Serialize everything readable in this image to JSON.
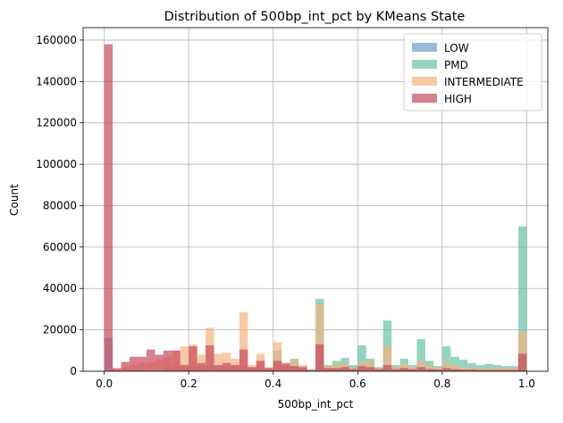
{
  "chart_data": {
    "type": "bar",
    "title": "Distribution of 500bp_int_pct by KMeans State",
    "xlabel": "500bp_int_pct",
    "ylabel": "Count",
    "xlim": [
      -0.05,
      1.05
    ],
    "ylim": [
      0,
      166000
    ],
    "xticks": [
      0.0,
      0.2,
      0.4,
      0.6,
      0.8,
      1.0
    ],
    "xtick_labels": [
      "0.0",
      "0.2",
      "0.4",
      "0.6",
      "0.8",
      "1.0"
    ],
    "yticks": [
      0,
      20000,
      40000,
      60000,
      80000,
      100000,
      120000,
      140000,
      160000
    ],
    "ytick_labels": [
      "0",
      "20000",
      "40000",
      "60000",
      "80000",
      "100000",
      "120000",
      "140000",
      "160000"
    ],
    "grid": true,
    "legend_position": "top-right",
    "bin_width": 0.02,
    "bin_starts": [
      0.0,
      0.02,
      0.04,
      0.06,
      0.08,
      0.1,
      0.12,
      0.14,
      0.16,
      0.18,
      0.2,
      0.22,
      0.24,
      0.26,
      0.28,
      0.3,
      0.32,
      0.34,
      0.36,
      0.38,
      0.4,
      0.42,
      0.44,
      0.46,
      0.48,
      0.5,
      0.52,
      0.54,
      0.56,
      0.58,
      0.6,
      0.62,
      0.64,
      0.66,
      0.68,
      0.7,
      0.72,
      0.74,
      0.76,
      0.78,
      0.8,
      0.82,
      0.84,
      0.86,
      0.88,
      0.9,
      0.92,
      0.94,
      0.96,
      0.98
    ],
    "series": [
      {
        "name": "LOW",
        "color": "#6e9ccc",
        "values": [
          16000,
          500,
          300,
          200,
          200,
          300,
          300,
          1500,
          1500,
          1500,
          1000,
          1500,
          1500,
          1000,
          1000,
          1000,
          1200,
          1000,
          1000,
          800,
          1500,
          1000,
          800,
          800,
          500,
          6000,
          1500,
          1500,
          1500,
          1500,
          1500,
          1500,
          1500,
          1500,
          1500,
          1500,
          1200,
          1500,
          1200,
          1000,
          1200,
          1000,
          900,
          800,
          800,
          800,
          800,
          700,
          700,
          7000
        ]
      },
      {
        "name": "PMD",
        "color": "#66c2a5",
        "values": [
          1000,
          300,
          200,
          200,
          200,
          300,
          300,
          2000,
          2000,
          2000,
          2500,
          2500,
          2500,
          2000,
          2000,
          2000,
          2500,
          2000,
          2000,
          1500,
          10000,
          2500,
          6000,
          2000,
          1000,
          35000,
          3000,
          5000,
          6500,
          3000,
          12500,
          6000,
          2000,
          24500,
          3000,
          6000,
          3000,
          15500,
          5000,
          2500,
          12000,
          7000,
          5500,
          4000,
          3000,
          3500,
          3000,
          2500,
          2500,
          70000
        ]
      },
      {
        "name": "INTERMEDIATE",
        "color": "#f4b382",
        "values": [
          1000,
          800,
          2000,
          3000,
          4000,
          4500,
          5500,
          7000,
          10000,
          12000,
          13000,
          8000,
          21000,
          8500,
          9000,
          6000,
          28500,
          3000,
          8500,
          2000,
          14000,
          3000,
          5500,
          3000,
          1000,
          32000,
          2500,
          3500,
          4000,
          1500,
          4500,
          5000,
          1500,
          12000,
          2000,
          3500,
          2000,
          5000,
          3000,
          1500,
          4500,
          3000,
          2000,
          2000,
          1500,
          1500,
          1500,
          1500,
          1500,
          19000
        ]
      },
      {
        "name": "HIGH",
        "color": "#c84a5c",
        "values": [
          158000,
          1500,
          4500,
          7000,
          7000,
          10500,
          8000,
          10000,
          10000,
          3000,
          12000,
          4000,
          12500,
          3000,
          4000,
          3000,
          10500,
          2000,
          5000,
          1500,
          5000,
          4000,
          2500,
          2000,
          500,
          13000,
          1500,
          1500,
          2000,
          1000,
          2500,
          2000,
          1000,
          3000,
          1000,
          1500,
          1000,
          2000,
          1000,
          800,
          1500,
          1000,
          800,
          800,
          600,
          600,
          600,
          600,
          600,
          8500
        ]
      }
    ]
  }
}
